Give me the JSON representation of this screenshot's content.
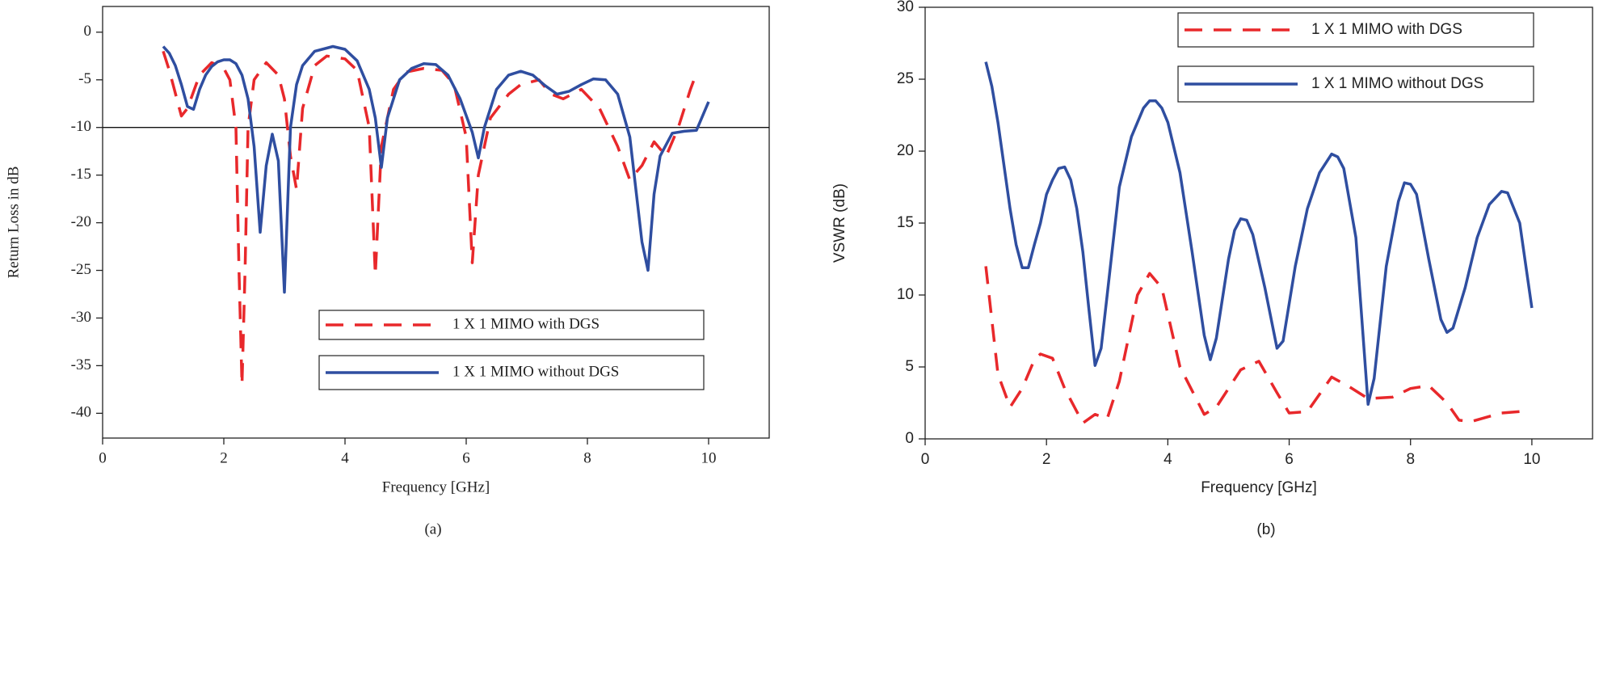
{
  "chart_data": [
    {
      "type": "line",
      "caption": "(a)",
      "xlabel": "Frequency [GHz]",
      "ylabel": "Return Loss in dB",
      "xlim": [
        0,
        11
      ],
      "ylim": [
        -42.6,
        2.7
      ],
      "xticks": [
        0,
        2,
        4,
        6,
        8,
        10
      ],
      "yticks": [
        0,
        -5,
        -10,
        -15,
        -20,
        -25,
        -30,
        -35,
        -40
      ],
      "hline": -10,
      "legend": "lower right",
      "series": [
        {
          "name": "1 X 1 MIMO with DGS",
          "color": "#e8282b",
          "style": "dashed",
          "x": [
            1.0,
            1.1,
            1.3,
            1.4,
            1.6,
            1.8,
            2.0,
            2.1,
            2.2,
            2.25,
            2.3,
            2.35,
            2.4,
            2.5,
            2.7,
            2.9,
            3.0,
            3.1,
            3.2,
            3.3,
            3.5,
            3.7,
            4.0,
            4.2,
            4.4,
            4.5,
            4.6,
            4.8,
            5.0,
            5.3,
            5.6,
            5.8,
            6.0,
            6.1,
            6.2,
            6.4,
            6.7,
            6.9,
            7.2,
            7.4,
            7.6,
            7.9,
            8.2,
            8.5,
            8.7,
            8.9,
            9.1,
            9.3,
            9.5,
            9.7,
            9.8
          ],
          "values": [
            -2,
            -4,
            -8.8,
            -8,
            -4.5,
            -3.2,
            -3.8,
            -5,
            -10,
            -25,
            -37,
            -25,
            -10,
            -5,
            -3.2,
            -4.5,
            -7,
            -13,
            -16.5,
            -8,
            -3.5,
            -2.5,
            -2.8,
            -4,
            -10,
            -25.5,
            -12,
            -6,
            -4.2,
            -3.8,
            -4,
            -5.5,
            -11,
            -24.2,
            -15,
            -9,
            -6.5,
            -5.5,
            -5,
            -6.5,
            -7,
            -6,
            -8,
            -12,
            -15.5,
            -14,
            -11.5,
            -13,
            -10,
            -6,
            -4.3
          ]
        },
        {
          "name": "1 X 1 MIMO without DGS",
          "color": "#2f4ea0",
          "style": "solid",
          "x": [
            1.0,
            1.1,
            1.2,
            1.3,
            1.4,
            1.5,
            1.6,
            1.7,
            1.8,
            1.9,
            2.0,
            2.1,
            2.2,
            2.3,
            2.4,
            2.5,
            2.6,
            2.7,
            2.8,
            2.9,
            3.0,
            3.1,
            3.2,
            3.3,
            3.5,
            3.8,
            4.0,
            4.2,
            4.4,
            4.5,
            4.6,
            4.7,
            4.9,
            5.1,
            5.3,
            5.5,
            5.7,
            5.9,
            6.1,
            6.2,
            6.3,
            6.5,
            6.7,
            6.9,
            7.1,
            7.3,
            7.5,
            7.7,
            7.9,
            8.1,
            8.3,
            8.5,
            8.7,
            8.9,
            9.0,
            9.1,
            9.2,
            9.4,
            9.6,
            9.8,
            10.0
          ],
          "values": [
            -1.5,
            -2.2,
            -3.5,
            -5.5,
            -7.8,
            -8.1,
            -6,
            -4.5,
            -3.6,
            -3.1,
            -2.9,
            -2.9,
            -3.3,
            -4.5,
            -7,
            -12,
            -21,
            -14,
            -10.7,
            -13.5,
            -27.3,
            -10,
            -5.5,
            -3.5,
            -2,
            -1.5,
            -1.8,
            -3,
            -6,
            -9,
            -14.2,
            -9,
            -5,
            -3.8,
            -3.3,
            -3.4,
            -4.5,
            -7,
            -10.5,
            -13.2,
            -10,
            -6,
            -4.5,
            -4.1,
            -4.5,
            -5.6,
            -6.5,
            -6.2,
            -5.5,
            -4.9,
            -5,
            -6.5,
            -11,
            -22,
            -25,
            -17,
            -13,
            -10.6,
            -10.4,
            -10.3,
            -7.3
          ]
        }
      ]
    },
    {
      "type": "line",
      "caption": "(b)",
      "xlabel": "Frequency [GHz]",
      "ylabel": "VSWR (dB)",
      "xlim": [
        0,
        11
      ],
      "ylim": [
        0,
        30
      ],
      "xticks": [
        0,
        2,
        4,
        6,
        8,
        10
      ],
      "yticks": [
        0,
        5,
        10,
        15,
        20,
        25,
        30
      ],
      "legend": "upper right",
      "series": [
        {
          "name": "1 X 1 MIMO with DGS",
          "color": "#e8282b",
          "style": "dashed",
          "x": [
            1.0,
            1.2,
            1.4,
            1.6,
            1.8,
            1.9,
            2.1,
            2.3,
            2.6,
            2.8,
            3.0,
            3.2,
            3.5,
            3.7,
            3.9,
            4.2,
            4.6,
            4.8,
            5.2,
            5.5,
            5.8,
            6.0,
            6.3,
            6.7,
            7.0,
            7.3,
            7.7,
            8.0,
            8.3,
            8.6,
            8.8,
            9.0,
            9.5,
            9.8
          ],
          "values": [
            12,
            4.5,
            2.2,
            3.5,
            5.5,
            5.9,
            5.6,
            3.5,
            1.1,
            1.7,
            1.4,
            4,
            10,
            11.5,
            10.5,
            5,
            1.7,
            2.2,
            4.8,
            5.4,
            3.2,
            1.8,
            1.9,
            4.3,
            3.6,
            2.8,
            2.9,
            3.5,
            3.7,
            2.5,
            1.3,
            1.2,
            1.8,
            1.9
          ]
        },
        {
          "name": "1 X 1 MIMO without DGS",
          "color": "#2f4ea0",
          "style": "solid",
          "x": [
            1.0,
            1.1,
            1.2,
            1.3,
            1.4,
            1.5,
            1.6,
            1.7,
            1.8,
            1.9,
            2.0,
            2.1,
            2.2,
            2.3,
            2.4,
            2.5,
            2.6,
            2.7,
            2.8,
            2.9,
            3.0,
            3.2,
            3.4,
            3.6,
            3.7,
            3.8,
            3.9,
            4.0,
            4.2,
            4.4,
            4.6,
            4.7,
            4.8,
            5.0,
            5.1,
            5.2,
            5.3,
            5.4,
            5.6,
            5.8,
            5.9,
            6.1,
            6.3,
            6.5,
            6.7,
            6.8,
            6.9,
            7.1,
            7.3,
            7.4,
            7.6,
            7.8,
            7.9,
            8.0,
            8.1,
            8.3,
            8.5,
            8.6,
            8.7,
            8.9,
            9.1,
            9.3,
            9.5,
            9.6,
            9.8,
            10.0
          ],
          "values": [
            26.2,
            24.5,
            22,
            19,
            16,
            13.5,
            11.9,
            11.9,
            13.5,
            15,
            17,
            18,
            18.8,
            18.9,
            18,
            16,
            13,
            9,
            5.1,
            6.3,
            10,
            17.5,
            21,
            23,
            23.5,
            23.5,
            23,
            22,
            18.5,
            13,
            7.2,
            5.5,
            7,
            12.5,
            14.5,
            15.3,
            15.2,
            14.2,
            10.5,
            6.3,
            6.8,
            12,
            16,
            18.5,
            19.8,
            19.6,
            18.8,
            14,
            2.4,
            4.2,
            12,
            16.5,
            17.8,
            17.7,
            17,
            12.5,
            8.3,
            7.4,
            7.7,
            10.5,
            14,
            16.3,
            17.2,
            17.1,
            15,
            9.1
          ]
        }
      ]
    }
  ]
}
